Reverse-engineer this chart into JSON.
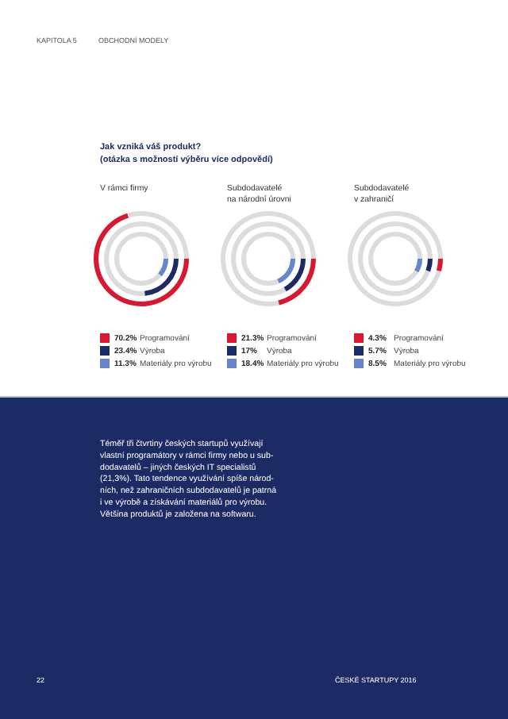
{
  "chart_data": [
    {
      "type": "other",
      "title": "V rámci firmy",
      "categories": [
        "Programování",
        "Výroba",
        "Materiály pro výrobu"
      ],
      "values": [
        70.2,
        23.4,
        11.3
      ],
      "value_labels": [
        "70.2%",
        "23.4%",
        "11.3%"
      ],
      "colors": [
        "#d9172e",
        "#1d2b64",
        "#6487c9"
      ],
      "annotations": [
        "KAPITOLA 5",
        "OBCHODNÍ MODELY",
        "Jak vzniká váš produkt?",
        "(otázka s možností výběru více odpovědí)",
        "Téměř tři čtvrtiny českých startupů využívají",
        "vlastní programátory v rámci firmy nebo u sub-",
        "dodavatelů – jiných českých IT specialistů",
        "(21,3%). Tato tendence využívání spíše národ-",
        "ních, než zahraničních subdodavatelů je patrná",
        "i ve výrobě a získávání materiálů pro výrobu.",
        "Většina produktů je založena na softwaru.",
        "22",
        "ČESKÉ STARTUPY 2016"
      ]
    },
    {
      "type": "other",
      "title": "Subdodavatelé\nna národní úrovni",
      "categories": [
        "Programování",
        "Výroba",
        "Materiály pro výrobu"
      ],
      "values": [
        21.3,
        17,
        18.4
      ],
      "value_labels": [
        "21.3%",
        "17%",
        "18.4%"
      ],
      "colors": [
        "#d9172e",
        "#1d2b64",
        "#6487c9"
      ]
    },
    {
      "type": "other",
      "title": "Subdodavatelé\nv zahraničí",
      "categories": [
        "Programování",
        "Výroba",
        "Materiály pro výrobu"
      ],
      "values": [
        4.3,
        5.7,
        8.5
      ],
      "value_labels": [
        "4.3%",
        "5.7%",
        "8.5%"
      ],
      "colors": [
        "#d9172e",
        "#1d2b64",
        "#6487c9"
      ]
    }
  ]
}
